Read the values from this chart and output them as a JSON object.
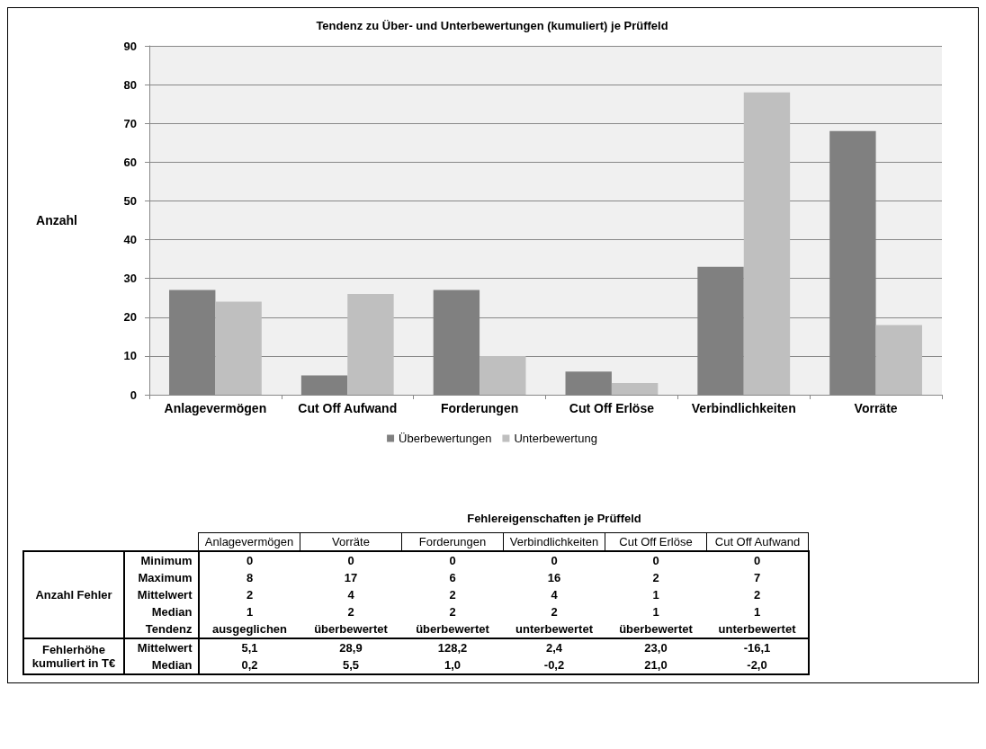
{
  "chart_data": [
    {
      "type": "bar",
      "title": "Tendenz zu Über- und Unterbewertungen (kumuliert) je Prüffeld",
      "ylabel": "Anzahl",
      "categories": [
        "Anlagevermögen",
        "Cut Off Aufwand",
        "Forderungen",
        "Cut Off Erlöse",
        "Verbindlichkeiten",
        "Vorräte"
      ],
      "series": [
        {
          "name": "Überbewertungen",
          "color": "#808080",
          "values": [
            27,
            5,
            27,
            6,
            33,
            68
          ]
        },
        {
          "name": "Unterbewertung",
          "color": "#bfbfbf",
          "values": [
            24,
            26,
            10,
            3,
            78,
            18
          ]
        }
      ],
      "ylim": [
        0,
        90
      ],
      "yticks": [
        0,
        10,
        20,
        30,
        40,
        50,
        60,
        70,
        80,
        90
      ],
      "grid": "y",
      "legend": "bottom"
    },
    {
      "type": "other",
      "title": "Fehlereigenschaften je Prüffeld",
      "categories": [
        "Anlagevermögen",
        "Vorräte",
        "Forderungen",
        "Verbindlichkeiten",
        "Cut Off Erlöse",
        "Cut Off Aufwand"
      ],
      "y_categories": [
        "Minimum",
        "Maximum",
        "Mittelwert",
        "Median",
        "Tendenz",
        "Mittelwert",
        "Median"
      ],
      "annotations": [
        {
          "text": "Anzahl Fehler",
          "y": "Minimum"
        },
        {
          "text": "Fehlerhöhe kumuliert in T€",
          "y": "Mittelwert"
        }
      ],
      "cell_labels": [
        [
          "0",
          "0",
          "0",
          "0",
          "0",
          "0"
        ],
        [
          "8",
          "17",
          "6",
          "16",
          "2",
          "7"
        ],
        [
          "2",
          "4",
          "2",
          "4",
          "1",
          "2"
        ],
        [
          "1",
          "2",
          "2",
          "2",
          "1",
          "1"
        ],
        [
          "ausgeglichen",
          "überbewertet",
          "überbewertet",
          "unterbewertet",
          "überbewertet",
          "unterbewertet"
        ],
        [
          "5,1",
          "28,9",
          "128,2",
          "2,4",
          "23,0",
          "-16,1"
        ],
        [
          "0,2",
          "5,5",
          "1,0",
          "-0,2",
          "21,0",
          "-2,0"
        ]
      ]
    }
  ]
}
